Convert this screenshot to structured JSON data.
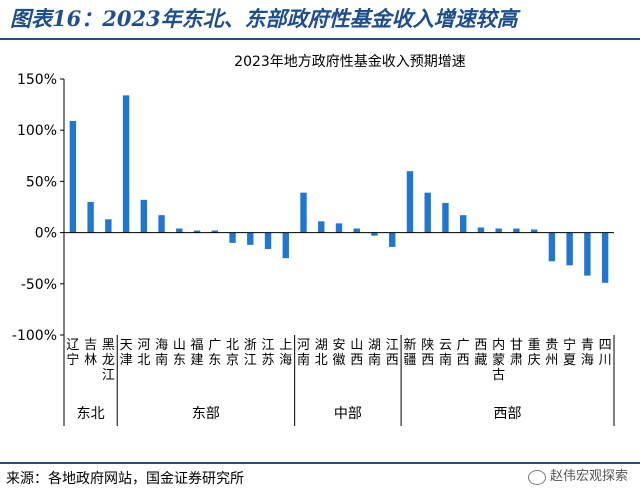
{
  "heading": "图表16：2023年东北、东部政府性基金收入增速较高",
  "source": "来源：各地政府网站，国金证券研究所",
  "watermark": "赵伟宏观探索",
  "colors": {
    "bar": "#1f77d0",
    "heading": "#1f4e8c",
    "axis": "#000000"
  },
  "chart_data": {
    "type": "bar",
    "title": "2023年地方政府性基金收入预期增速",
    "ylim": [
      -100,
      150
    ],
    "yticks": [
      150,
      100,
      50,
      0,
      -50,
      -100
    ],
    "ytick_labels": [
      "150%",
      "100%",
      "50%",
      "0%",
      "-50%",
      "-100%"
    ],
    "grid": false,
    "categories": [
      "辽宁",
      "吉林",
      "黑龙江",
      "天津",
      "河北",
      "海南",
      "山东",
      "福建",
      "广东",
      "北京",
      "浙江",
      "江苏",
      "上海",
      "河南",
      "湖北",
      "安徽",
      "山西",
      "湖南",
      "江西",
      "新疆",
      "陕西",
      "云南",
      "广西",
      "西藏",
      "内蒙古",
      "甘肃",
      "重庆",
      "贵州",
      "宁夏",
      "青海",
      "四川"
    ],
    "values": [
      109,
      30,
      13,
      134,
      32,
      17,
      4,
      2,
      2,
      -10,
      -12,
      -16,
      -25,
      39,
      11,
      9,
      4,
      -3,
      -14,
      60,
      39,
      29,
      17,
      5,
      4,
      4,
      3,
      -28,
      -32,
      -42,
      -49
    ],
    "groups": [
      {
        "name": "东北",
        "start": 0,
        "end": 2
      },
      {
        "name": "东部",
        "start": 3,
        "end": 12
      },
      {
        "name": "中部",
        "start": 13,
        "end": 18
      },
      {
        "name": "西部",
        "start": 19,
        "end": 30
      }
    ]
  }
}
